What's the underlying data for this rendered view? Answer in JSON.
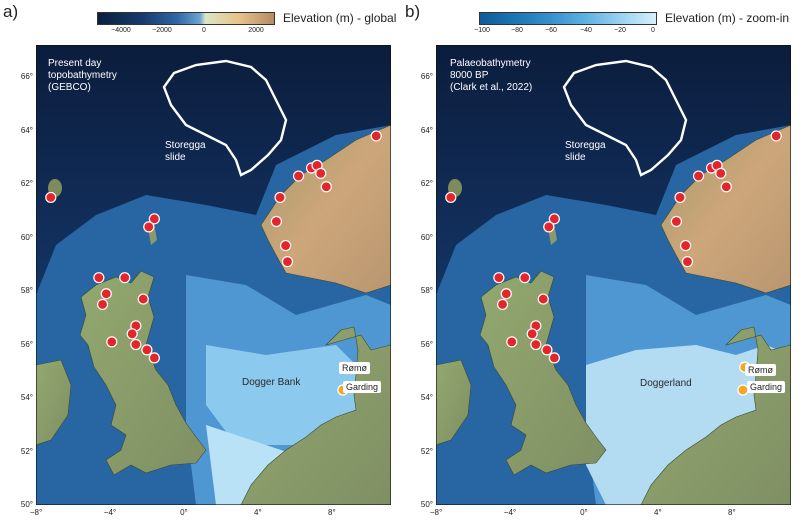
{
  "panels": [
    {
      "id": "a",
      "label": "a)",
      "colorbar": {
        "title": "Elevation (m) - global",
        "ticks": [
          "−4000",
          "−2000",
          "0",
          "2000"
        ],
        "stops": [
          "#0c1f3f",
          "#173a6d",
          "#2f67a5",
          "#6ba6d1",
          "#d9e7c4",
          "#e8c28a",
          "#b78a63"
        ]
      },
      "annotation": [
        "Present day",
        "topobathymetry",
        "(GEBCO)"
      ],
      "slide_label": [
        "Storegga",
        "slide"
      ],
      "bank_label": "Dogger Bank",
      "sites": [
        {
          "name": "Rømø",
          "lon": 8.7,
          "lat": 55.15
        },
        {
          "name": "Garding",
          "lon": 8.6,
          "lat": 54.3
        }
      ]
    },
    {
      "id": "b",
      "label": "b)",
      "colorbar": {
        "title": "Elevation (m) - zoom-in",
        "ticks": [
          "−100",
          "−80",
          "−60",
          "−40",
          "−20",
          "0"
        ],
        "stops": [
          "#0f5b97",
          "#1a77b4",
          "#3690cc",
          "#5fb1e2",
          "#99d2f2",
          "#d6f0fc"
        ]
      },
      "annotation": [
        "Palaeobathymetry",
        "8000 BP",
        "(Clark et al., 2022)"
      ],
      "slide_label": [
        "Storegga",
        "slide"
      ],
      "bank_label": "Doggerland",
      "sites": [
        {
          "name": "Rømø",
          "lon": 8.7,
          "lat": 55.15
        },
        {
          "name": "Garding",
          "lon": 8.6,
          "lat": 54.3
        }
      ]
    }
  ],
  "axes": {
    "lat_labels": [
      "66°",
      "64°",
      "62°",
      "60°",
      "58°",
      "56°",
      "54°",
      "52°",
      "50°"
    ],
    "lon_labels": [
      "−8°",
      "−4°",
      "0°",
      "4°",
      "8°"
    ],
    "lat_values": [
      66,
      64,
      62,
      60,
      58,
      56,
      54,
      52,
      50
    ],
    "lon_values": [
      -8,
      -4,
      0,
      4,
      8
    ],
    "lon_range": [
      -8,
      11.2
    ],
    "lat_range": [
      50,
      67.2
    ]
  },
  "red_sites": [
    {
      "lon": -7.2,
      "lat": 61.5
    },
    {
      "lon": -1.6,
      "lat": 60.7
    },
    {
      "lon": -1.9,
      "lat": 60.4
    },
    {
      "lon": -4.6,
      "lat": 58.5
    },
    {
      "lon": -3.2,
      "lat": 58.5
    },
    {
      "lon": -4.2,
      "lat": 57.9
    },
    {
      "lon": -4.4,
      "lat": 57.5
    },
    {
      "lon": -2.2,
      "lat": 57.7
    },
    {
      "lon": -2.6,
      "lat": 56.7
    },
    {
      "lon": -2.8,
      "lat": 56.4
    },
    {
      "lon": -3.9,
      "lat": 56.1
    },
    {
      "lon": -2.6,
      "lat": 56.0
    },
    {
      "lon": -2.0,
      "lat": 55.8
    },
    {
      "lon": -1.6,
      "lat": 55.5
    },
    {
      "lon": 5.2,
      "lat": 61.5
    },
    {
      "lon": 5.0,
      "lat": 60.6
    },
    {
      "lon": 5.5,
      "lat": 59.7
    },
    {
      "lon": 5.6,
      "lat": 59.1
    },
    {
      "lon": 6.2,
      "lat": 62.3
    },
    {
      "lon": 6.9,
      "lat": 62.6
    },
    {
      "lon": 7.2,
      "lat": 62.7
    },
    {
      "lon": 7.4,
      "lat": 62.4
    },
    {
      "lon": 7.7,
      "lat": 61.9
    },
    {
      "lon": 10.4,
      "lat": 63.8
    }
  ],
  "colors": {
    "deep_ocean": "#0d2346",
    "shelf": "#2a6aa8",
    "shallow": "#8fcbee",
    "land_green": "#8a9a6a",
    "highland": "#c2a27a",
    "red_site": "#e4252b",
    "orange_site": "#f5a623",
    "outline": "#ffffff"
  }
}
